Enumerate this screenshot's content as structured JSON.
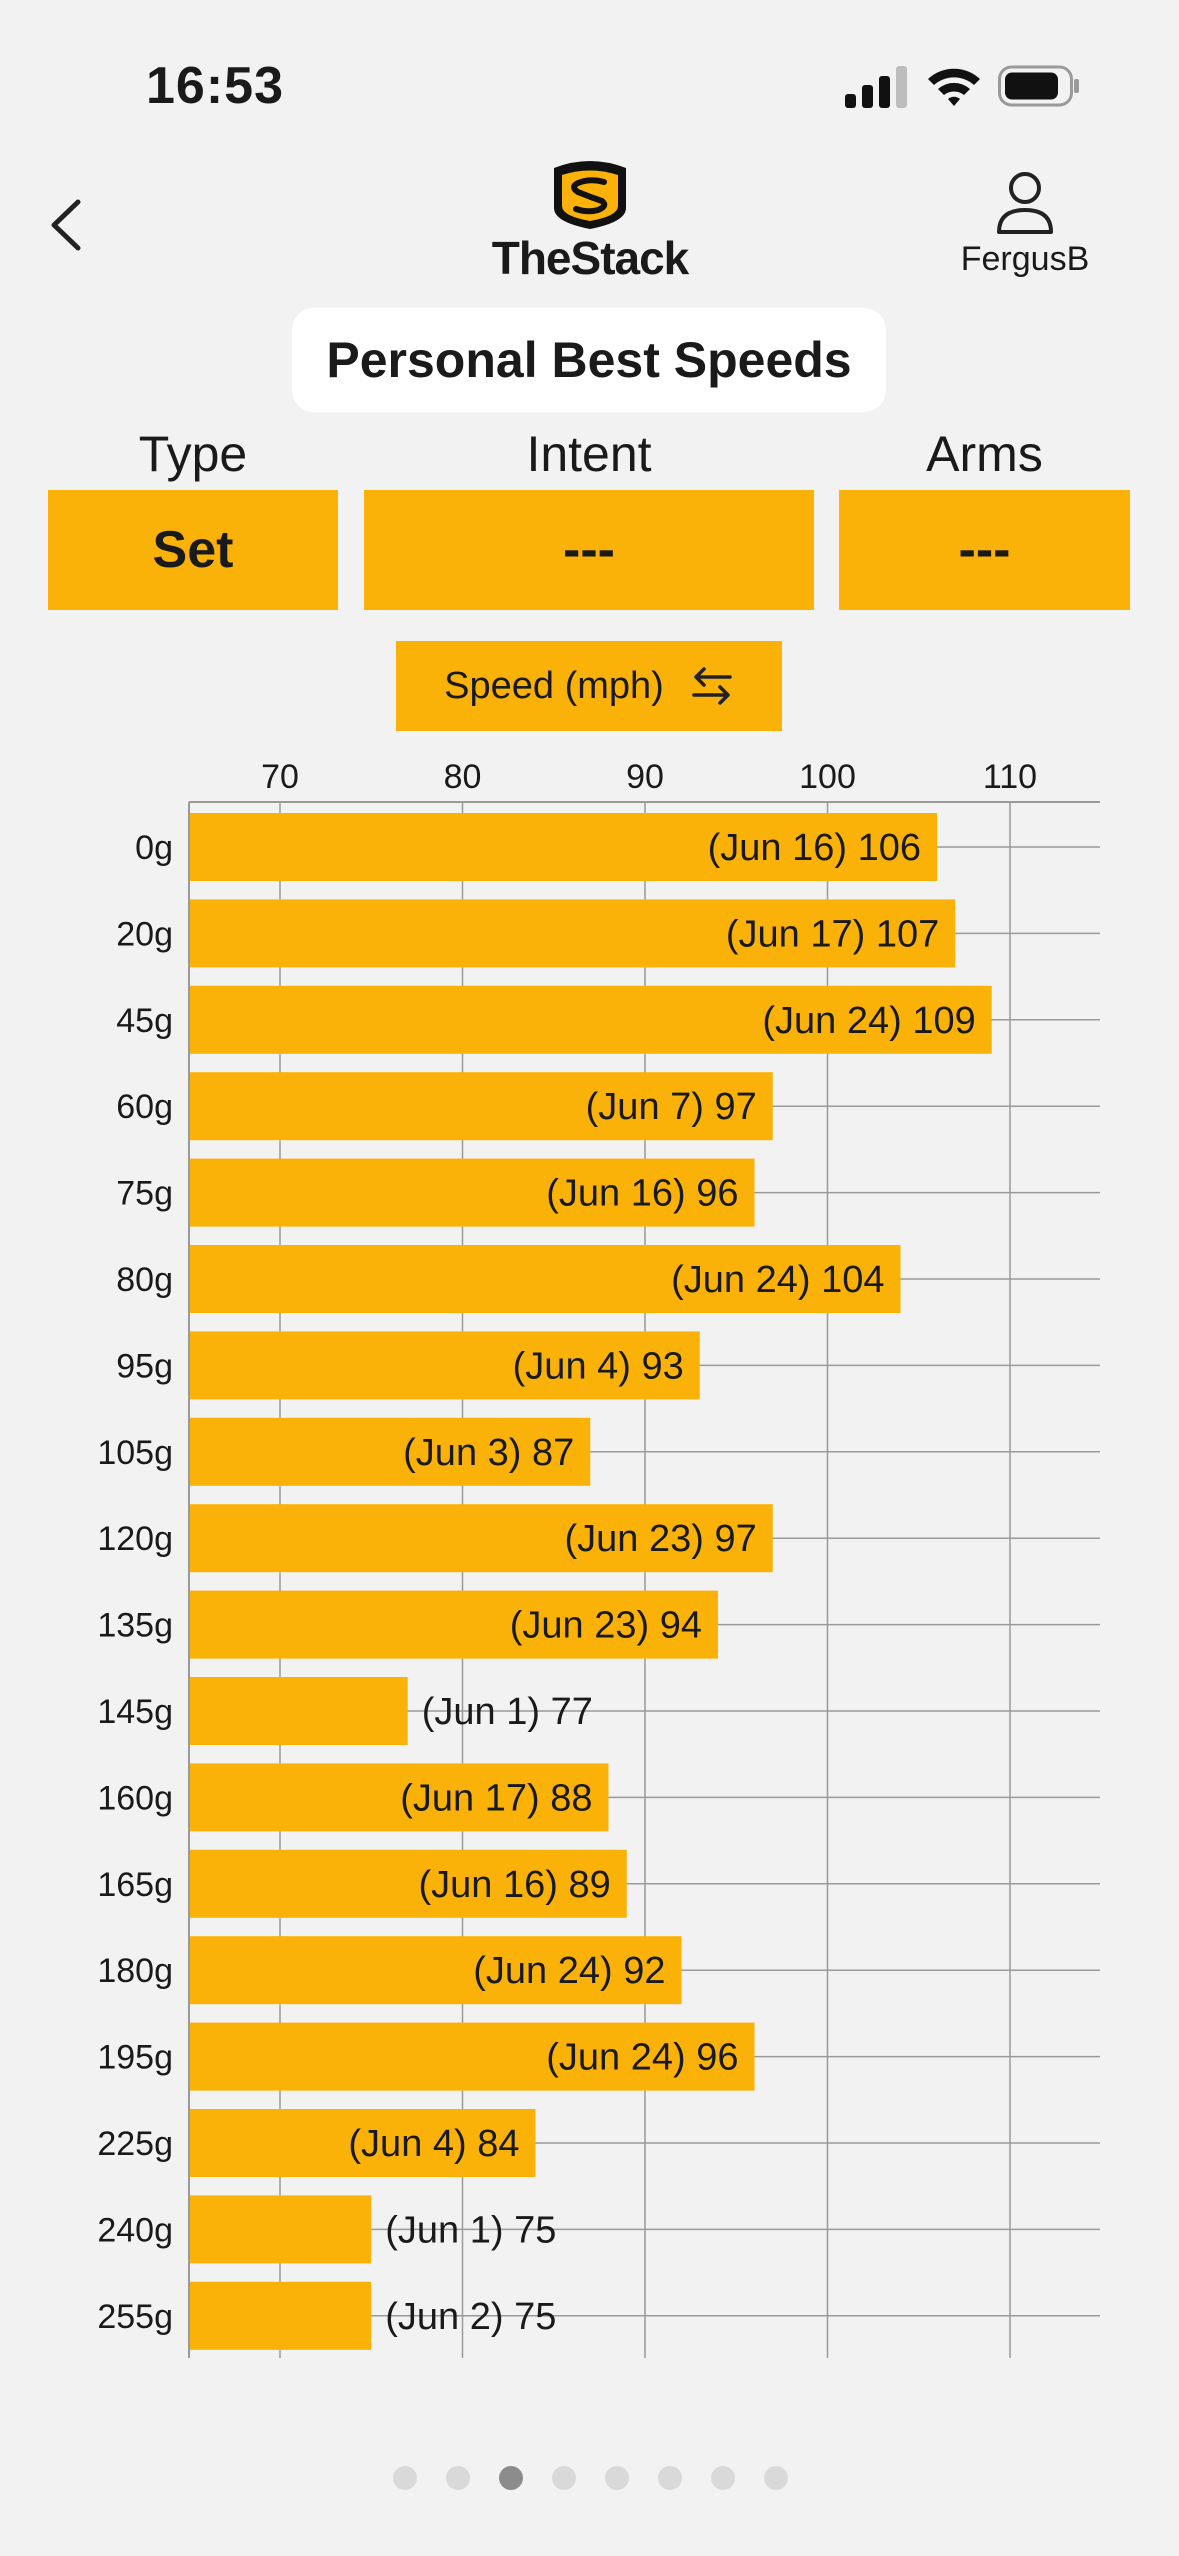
{
  "status_bar": {
    "time": "16:53"
  },
  "header": {
    "logo_text": "TheStack",
    "username": "FergusB"
  },
  "page_title": "Personal Best Speeds",
  "filters": [
    {
      "label": "Type",
      "value": "Set"
    },
    {
      "label": "Intent",
      "value": "---"
    },
    {
      "label": "Arms",
      "value": "---"
    }
  ],
  "metric_toggle": {
    "label": "Speed (mph)"
  },
  "colors": {
    "accent": "#FBB208",
    "background": "#F2F2F2",
    "grid": "#9A9A9A"
  },
  "chart_data": {
    "type": "bar",
    "orientation": "horizontal",
    "categories": [
      "0g",
      "20g",
      "45g",
      "60g",
      "75g",
      "80g",
      "95g",
      "105g",
      "120g",
      "135g",
      "145g",
      "160g",
      "165g",
      "180g",
      "195g",
      "225g",
      "240g",
      "255g"
    ],
    "values": [
      106,
      107,
      109,
      97,
      96,
      104,
      93,
      87,
      97,
      94,
      77,
      88,
      89,
      92,
      96,
      84,
      75,
      75
    ],
    "dates": [
      "Jun 16",
      "Jun 17",
      "Jun 24",
      "Jun 7",
      "Jun 16",
      "Jun 24",
      "Jun 4",
      "Jun 3",
      "Jun 23",
      "Jun 23",
      "Jun 1",
      "Jun 17",
      "Jun 16",
      "Jun 24",
      "Jun 24",
      "Jun 4",
      "Jun 1",
      "Jun 2"
    ],
    "data_labels": [
      "(Jun 16) 106",
      "(Jun 17) 107",
      "(Jun 24) 109",
      "(Jun 7) 97",
      "(Jun 16) 96",
      "(Jun 24) 104",
      "(Jun 4) 93",
      "(Jun 3) 87",
      "(Jun 23) 97",
      "(Jun 23) 94",
      "(Jun 1) 77",
      "(Jun 17) 88",
      "(Jun 16) 89",
      "(Jun 24) 92",
      "(Jun 24) 96",
      "(Jun 4) 84",
      "(Jun 1) 75",
      "(Jun 2) 75"
    ],
    "xticks": [
      70,
      80,
      90,
      100,
      110
    ],
    "xlim": [
      65,
      115
    ],
    "axis_position": "top",
    "grid": true,
    "xlabel": "",
    "ylabel": ""
  },
  "pagination": {
    "count": 8,
    "active_index": 2
  }
}
